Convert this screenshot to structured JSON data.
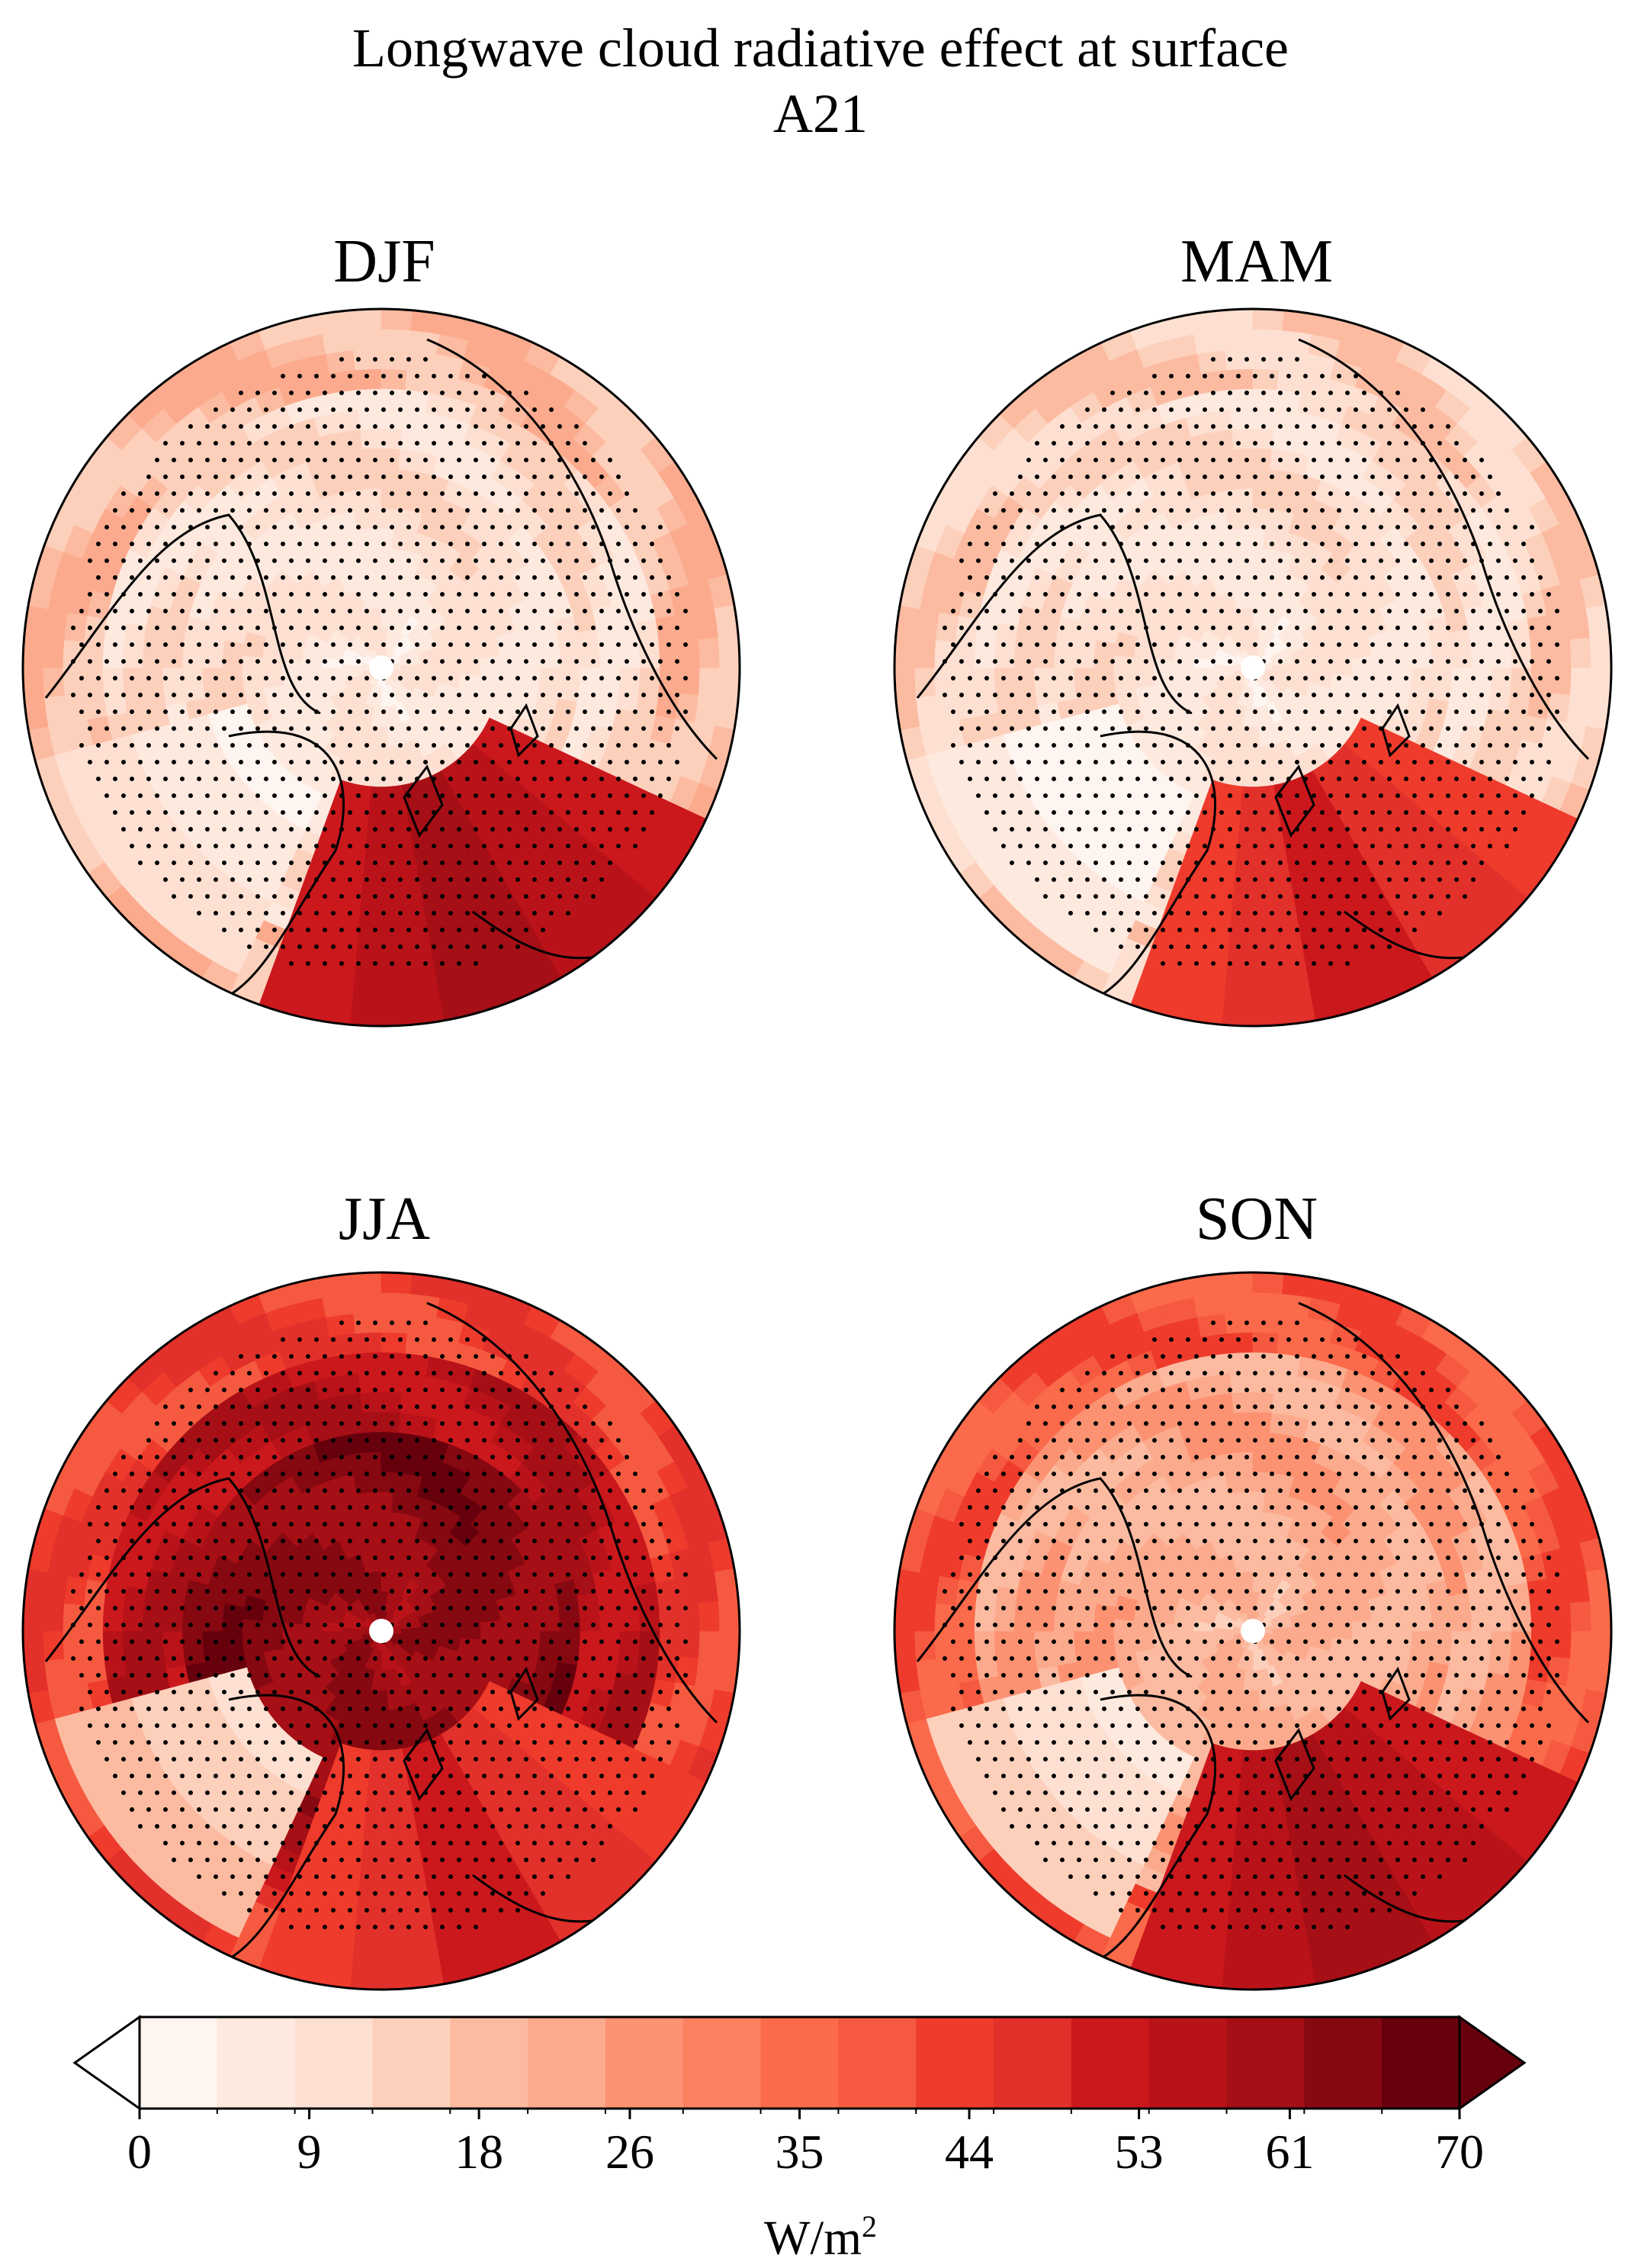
{
  "figure": {
    "title_line1": "Longwave cloud radiative effect at surface",
    "title_line2": "A21"
  },
  "panels": [
    {
      "label": "DJF"
    },
    {
      "label": "MAM"
    },
    {
      "label": "JJA"
    },
    {
      "label": "SON"
    }
  ],
  "colorbar": {
    "min": 0,
    "max": 70,
    "tick_labels": [
      "0",
      "9",
      "18",
      "26",
      "35",
      "44",
      "53",
      "61",
      "70"
    ],
    "units_base": "W/m",
    "units_exp": "2",
    "extend": "both",
    "colors": [
      "#fff5f0",
      "#fee9df",
      "#fee0d2",
      "#fdd0bc",
      "#fcbba1",
      "#fcaa8d",
      "#fc9272",
      "#fb8060",
      "#fb6a4a",
      "#f55a40",
      "#ef3b2c",
      "#e2302a",
      "#cb181d",
      "#b91319",
      "#a50f15",
      "#860811",
      "#67000d"
    ]
  }
}
